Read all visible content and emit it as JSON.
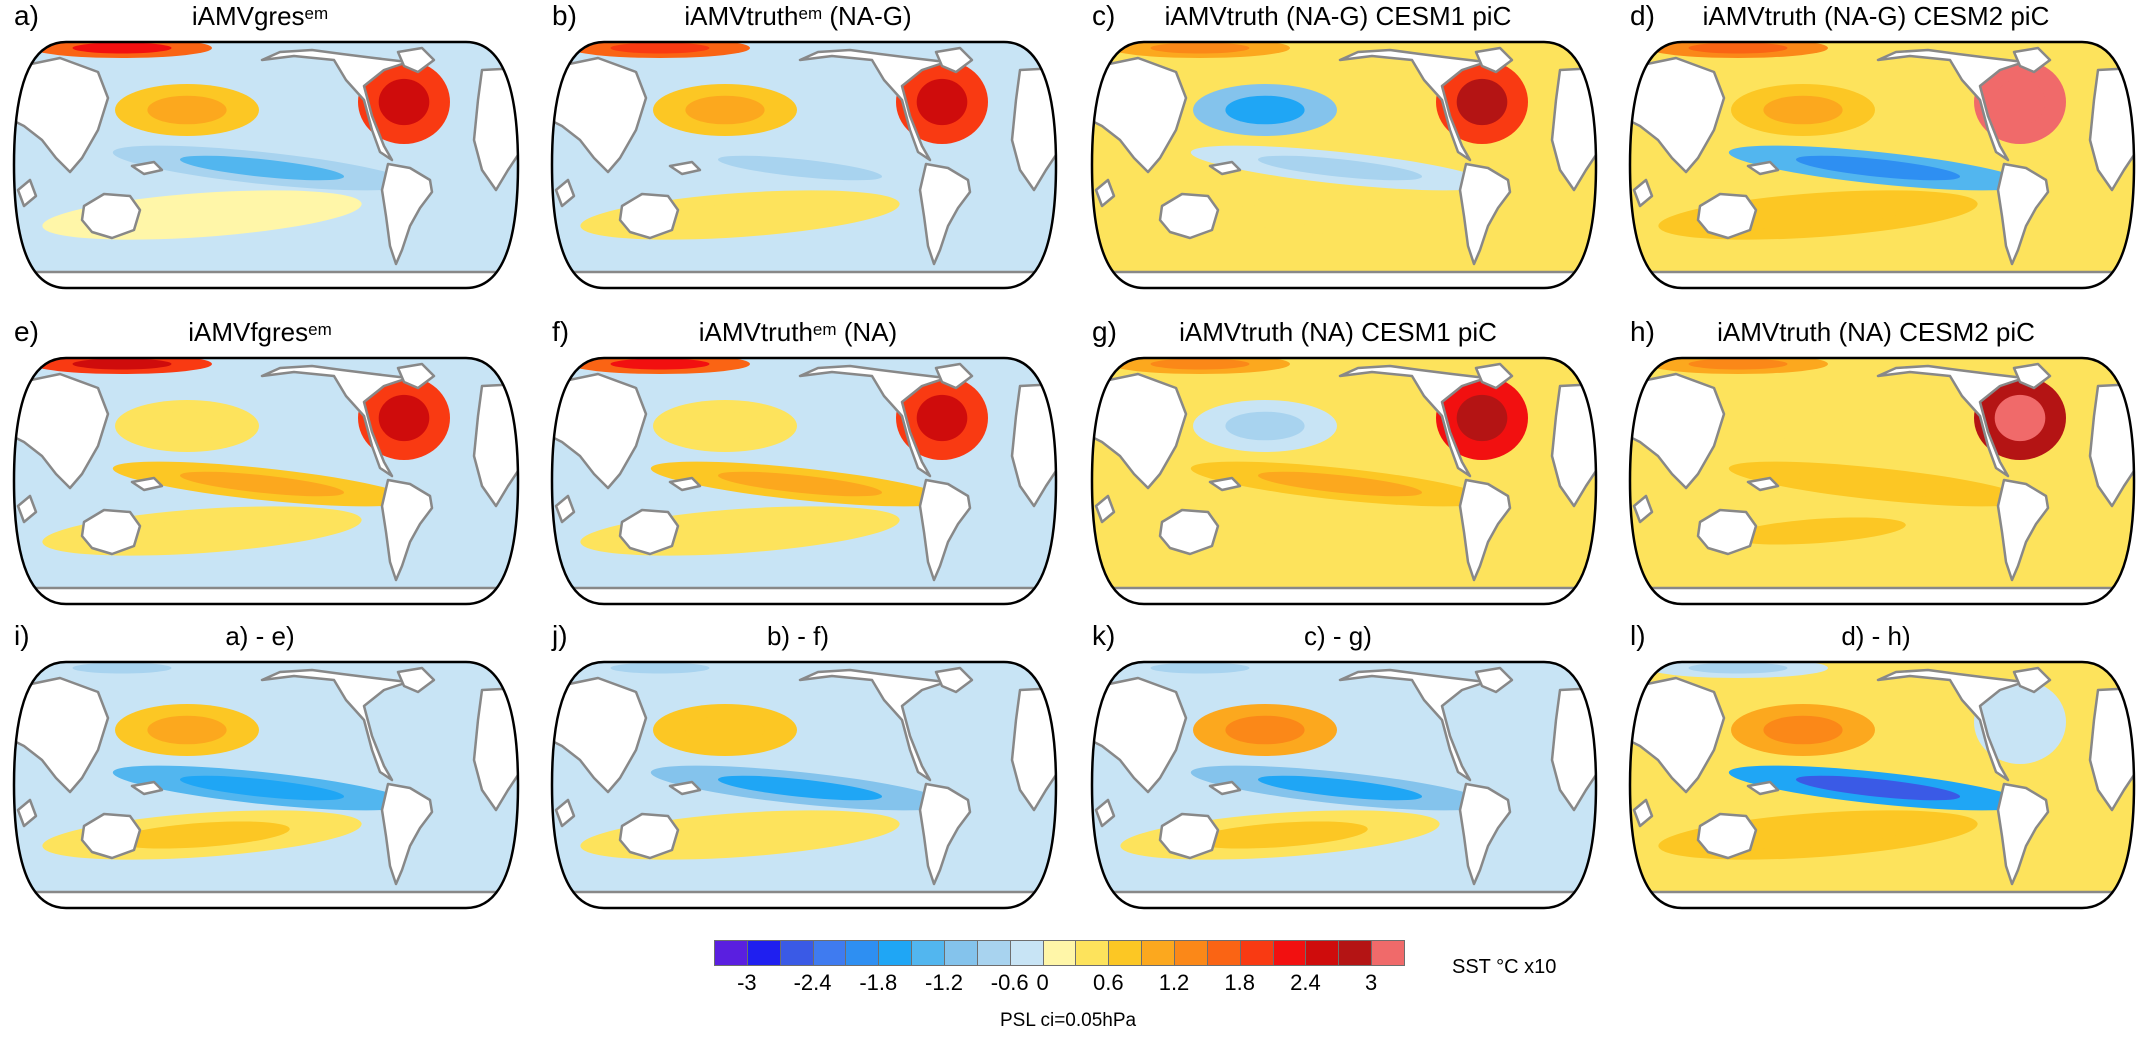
{
  "panels": [
    {
      "letter": "a)",
      "title": "iAMVgres",
      "sup": "em",
      "suffix": "",
      "field": {
        "natl": 1.8,
        "npac": 0.8,
        "eqpac": -0.9,
        "spac": 0.0,
        "so": -0.4,
        "arctic": 1.6
      }
    },
    {
      "letter": "b)",
      "title": "iAMVtruth",
      "sup": "em",
      "suffix": " (NA-G)",
      "field": {
        "natl": 1.9,
        "npac": 0.7,
        "eqpac": -0.6,
        "spac": 0.3,
        "so": -0.4,
        "arctic": 1.5
      }
    },
    {
      "letter": "c)",
      "title": "iAMVtruth (NA-G) CESM1 piC",
      "sup": "",
      "suffix": "",
      "field": {
        "natl": 2.0,
        "npac": -1.2,
        "eqpac": -0.6,
        "spac": 0.4,
        "so": 0.3,
        "arctic": 1.0
      }
    },
    {
      "letter": "d)",
      "title": "iAMVtruth (NA-G) CESM2 piC",
      "sup": "",
      "suffix": "",
      "field": {
        "natl": 3.0,
        "npac": 0.8,
        "eqpac": -1.4,
        "spac": 0.6,
        "so": 0.3,
        "arctic": 1.2
      }
    },
    {
      "letter": "e)",
      "title": "iAMVfgres",
      "sup": "em",
      "suffix": "",
      "field": {
        "natl": 1.9,
        "npac": 0.4,
        "eqpac": 0.7,
        "spac": 0.3,
        "so": -0.3,
        "arctic": 1.8
      }
    },
    {
      "letter": "f)",
      "title": "iAMVtruth",
      "sup": "em",
      "suffix": " (NA)",
      "field": {
        "natl": 1.9,
        "npac": 0.3,
        "eqpac": 0.7,
        "spac": 0.4,
        "so": -0.3,
        "arctic": 1.7
      }
    },
    {
      "letter": "g)",
      "title": "iAMVtruth (NA) CESM1 piC",
      "sup": "",
      "suffix": "",
      "field": {
        "natl": 2.2,
        "npac": -0.6,
        "eqpac": 0.8,
        "spac": 0.3,
        "so": 0.3,
        "arctic": 0.9
      }
    },
    {
      "letter": "h)",
      "title": "iAMVtruth (NA) CESM2 piC",
      "sup": "",
      "suffix": "",
      "field": {
        "natl": 2.9,
        "npac": 0.4,
        "eqpac": 0.6,
        "spac": 0.5,
        "so": 0.3,
        "arctic": 1.0
      }
    },
    {
      "letter": "i)",
      "title": "a) - e)",
      "sup": "",
      "suffix": "",
      "field": {
        "natl": -0.3,
        "npac": 0.8,
        "eqpac": -1.3,
        "spac": 0.5,
        "so": -0.3,
        "arctic": -0.5
      }
    },
    {
      "letter": "j)",
      "title": "b) - f)",
      "sup": "",
      "suffix": "",
      "field": {
        "natl": -0.4,
        "npac": 0.6,
        "eqpac": -1.2,
        "spac": 0.3,
        "so": -0.5,
        "arctic": -0.5
      }
    },
    {
      "letter": "k)",
      "title": "c) - g)",
      "sup": "",
      "suffix": "",
      "field": {
        "natl": -0.4,
        "npac": 0.9,
        "eqpac": -1.2,
        "spac": 0.5,
        "so": -0.5,
        "arctic": -0.5
      }
    },
    {
      "letter": "l)",
      "title": "d) - h)",
      "sup": "",
      "suffix": "",
      "field": {
        "natl": -0.3,
        "npac": 1.0,
        "eqpac": -1.8,
        "spac": 0.6,
        "so": 0.3,
        "arctic": -0.5
      }
    }
  ],
  "colorbar": {
    "colors": [
      "#5a1fe0",
      "#1f1ff0",
      "#3a5ae6",
      "#3f7bf0",
      "#2e8ff2",
      "#1fa6f5",
      "#52b6ef",
      "#84c3ec",
      "#a8d3ef",
      "#c8e4f5",
      "#fff6a8",
      "#fde35c",
      "#fcc724",
      "#fca81e",
      "#fb8818",
      "#fa6414",
      "#f93a12",
      "#f21010",
      "#cf0c0c",
      "#b41414",
      "#f06a6a"
    ],
    "bounds": [
      -3.3,
      -3.0,
      -2.7,
      -2.4,
      -2.1,
      -1.8,
      -1.5,
      -1.2,
      -0.9,
      -0.6,
      0,
      0.3,
      0.6,
      0.9,
      1.2,
      1.5,
      1.8,
      2.1,
      2.4,
      2.7,
      3.0,
      3.3
    ],
    "tick_labels": [
      "-3",
      "-2.4",
      "-1.8",
      "-1.2",
      "-0.6",
      "0",
      "0.6",
      "1.2",
      "1.8",
      "2.4",
      "3"
    ],
    "tick_values": [
      -3.0,
      -2.4,
      -1.8,
      -1.2,
      -0.6,
      0,
      0.6,
      1.2,
      1.8,
      2.4,
      3.0
    ],
    "units": "SST °C x10"
  },
  "note": "PSL ci=0.05hPa",
  "colors": {
    "land": "#ffffff",
    "coastline": "#888888",
    "border": "#000000"
  }
}
